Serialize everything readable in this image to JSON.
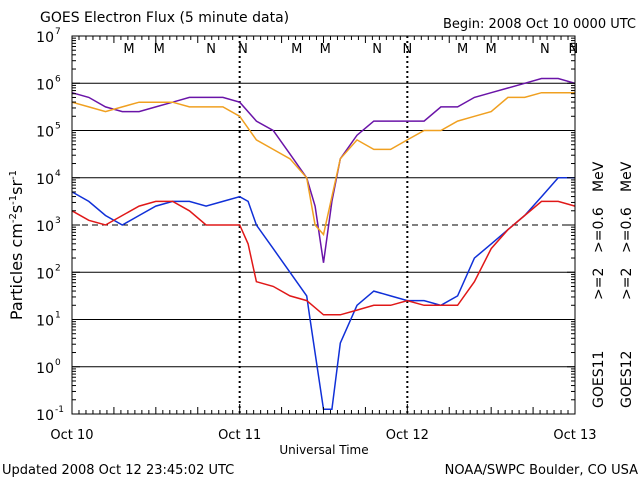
{
  "header": {
    "title": "GOES Electron Flux (5 minute data)",
    "begin": "Begin: 2008 Oct 10 0000 UTC"
  },
  "footer": {
    "updated": "Updated 2008 Oct 12 23:45:02 UTC",
    "source": "NOAA/SWPC Boulder, CO USA"
  },
  "colors": {
    "goes11_ge2": "#1030d8",
    "goes11_ge06": "#6a14a8",
    "goes12_ge2": "#e01818",
    "goes12_ge06": "#f0a020",
    "marker_m": "#e01818",
    "marker_m2": "#1030d8",
    "marker_n": "#e01818",
    "marker_n2": "#1030d8"
  },
  "chart_data": {
    "type": "line",
    "title": "GOES Electron Flux (5 minute data)",
    "xlabel": "Universal Time",
    "ylabel": "Particles cm-2s-1sr-1",
    "ylim_log10": [
      -1,
      7
    ],
    "xlim_days": [
      0,
      3
    ],
    "x_tick_labels": [
      "Oct 10",
      "Oct 11",
      "Oct 12",
      "Oct 13"
    ],
    "y_tick_exponents": [
      -1,
      0,
      1,
      2,
      3,
      4,
      5,
      6,
      7
    ],
    "threshold_log10": 3,
    "markers": [
      {
        "label": "M",
        "day": 0.34,
        "color": "marker_m"
      },
      {
        "label": "M",
        "day": 0.52,
        "color": "marker_m2"
      },
      {
        "label": "N",
        "day": 0.83,
        "color": "marker_n"
      },
      {
        "label": "N",
        "day": 1.02,
        "color": "marker_n2"
      },
      {
        "label": "M",
        "day": 1.34,
        "color": "marker_m"
      },
      {
        "label": "M",
        "day": 1.51,
        "color": "marker_m2"
      },
      {
        "label": "N",
        "day": 1.82,
        "color": "marker_n"
      },
      {
        "label": "N",
        "day": 2.0,
        "color": "marker_n2"
      },
      {
        "label": "M",
        "day": 2.33,
        "color": "marker_m"
      },
      {
        "label": "M",
        "day": 2.5,
        "color": "marker_m2"
      },
      {
        "label": "N",
        "day": 2.82,
        "color": "marker_n"
      },
      {
        "label": "N",
        "day": 2.99,
        "color": "marker_n2"
      }
    ],
    "legend": {
      "goes11": "GOES11",
      "goes12": "GOES12",
      "ge2_label": ">=2",
      "ge06_label": ">=0.6",
      "unit": "MeV"
    },
    "series": [
      {
        "name": "GOES11 >=0.6 MeV",
        "color": "goes11_ge06",
        "x": [
          0,
          0.1,
          0.2,
          0.3,
          0.4,
          0.5,
          0.6,
          0.7,
          0.8,
          0.9,
          1.0,
          1.1,
          1.2,
          1.3,
          1.4,
          1.45,
          1.5,
          1.55,
          1.6,
          1.7,
          1.8,
          1.9,
          2.0,
          2.1,
          2.2,
          2.3,
          2.4,
          2.5,
          2.6,
          2.7,
          2.8,
          2.9,
          3.0
        ],
        "y": [
          5.8,
          5.7,
          5.5,
          5.4,
          5.4,
          5.5,
          5.6,
          5.7,
          5.7,
          5.7,
          5.6,
          5.2,
          5.0,
          4.5,
          4.0,
          3.4,
          2.2,
          3.5,
          4.4,
          4.9,
          5.2,
          5.2,
          5.2,
          5.2,
          5.5,
          5.5,
          5.7,
          5.8,
          5.9,
          6.0,
          6.1,
          6.1,
          6.0
        ]
      },
      {
        "name": "GOES12 >=0.6 MeV",
        "color": "goes12_ge06",
        "x": [
          0,
          0.1,
          0.2,
          0.3,
          0.4,
          0.5,
          0.6,
          0.7,
          0.8,
          0.9,
          1.0,
          1.1,
          1.2,
          1.3,
          1.4,
          1.45,
          1.5,
          1.55,
          1.6,
          1.7,
          1.8,
          1.9,
          2.0,
          2.1,
          2.2,
          2.3,
          2.4,
          2.5,
          2.6,
          2.7,
          2.8,
          2.9,
          3.0
        ],
        "y": [
          5.6,
          5.5,
          5.4,
          5.5,
          5.6,
          5.6,
          5.6,
          5.5,
          5.5,
          5.5,
          5.3,
          4.8,
          4.6,
          4.4,
          4.0,
          3.0,
          2.8,
          3.6,
          4.4,
          4.8,
          4.6,
          4.6,
          4.8,
          5.0,
          5.0,
          5.2,
          5.3,
          5.4,
          5.7,
          5.7,
          5.8,
          5.8,
          5.8
        ]
      },
      {
        "name": "GOES11 >=2 MeV",
        "color": "goes11_ge2",
        "x": [
          0,
          0.1,
          0.2,
          0.3,
          0.4,
          0.5,
          0.6,
          0.7,
          0.8,
          0.9,
          1.0,
          1.05,
          1.1,
          1.2,
          1.3,
          1.4,
          1.42,
          1.5,
          1.55,
          1.6,
          1.7,
          1.8,
          1.9,
          2.0,
          2.1,
          2.2,
          2.3,
          2.4,
          2.5,
          2.6,
          2.7,
          2.8,
          2.9,
          3.0
        ],
        "y": [
          3.7,
          3.5,
          3.2,
          3.0,
          3.2,
          3.4,
          3.5,
          3.5,
          3.4,
          3.5,
          3.6,
          3.5,
          3.0,
          2.5,
          2.0,
          1.5,
          1.0,
          -0.9,
          -0.9,
          0.5,
          1.3,
          1.6,
          1.5,
          1.4,
          1.4,
          1.3,
          1.5,
          2.3,
          2.6,
          2.9,
          3.2,
          3.6,
          4.0,
          4.0
        ]
      },
      {
        "name": "GOES12 >=2 MeV",
        "color": "goes12_ge2",
        "x": [
          0,
          0.1,
          0.2,
          0.3,
          0.4,
          0.5,
          0.6,
          0.7,
          0.8,
          0.9,
          1.0,
          1.05,
          1.1,
          1.2,
          1.3,
          1.4,
          1.5,
          1.6,
          1.7,
          1.8,
          1.9,
          2.0,
          2.1,
          2.2,
          2.3,
          2.4,
          2.5,
          2.6,
          2.7,
          2.8,
          2.9,
          3.0
        ],
        "y": [
          3.3,
          3.1,
          3.0,
          3.2,
          3.4,
          3.5,
          3.5,
          3.3,
          3.0,
          3.0,
          3.0,
          2.6,
          1.8,
          1.7,
          1.5,
          1.4,
          1.1,
          1.1,
          1.2,
          1.3,
          1.3,
          1.4,
          1.3,
          1.3,
          1.3,
          1.8,
          2.5,
          2.9,
          3.2,
          3.5,
          3.5,
          3.4
        ]
      }
    ]
  }
}
